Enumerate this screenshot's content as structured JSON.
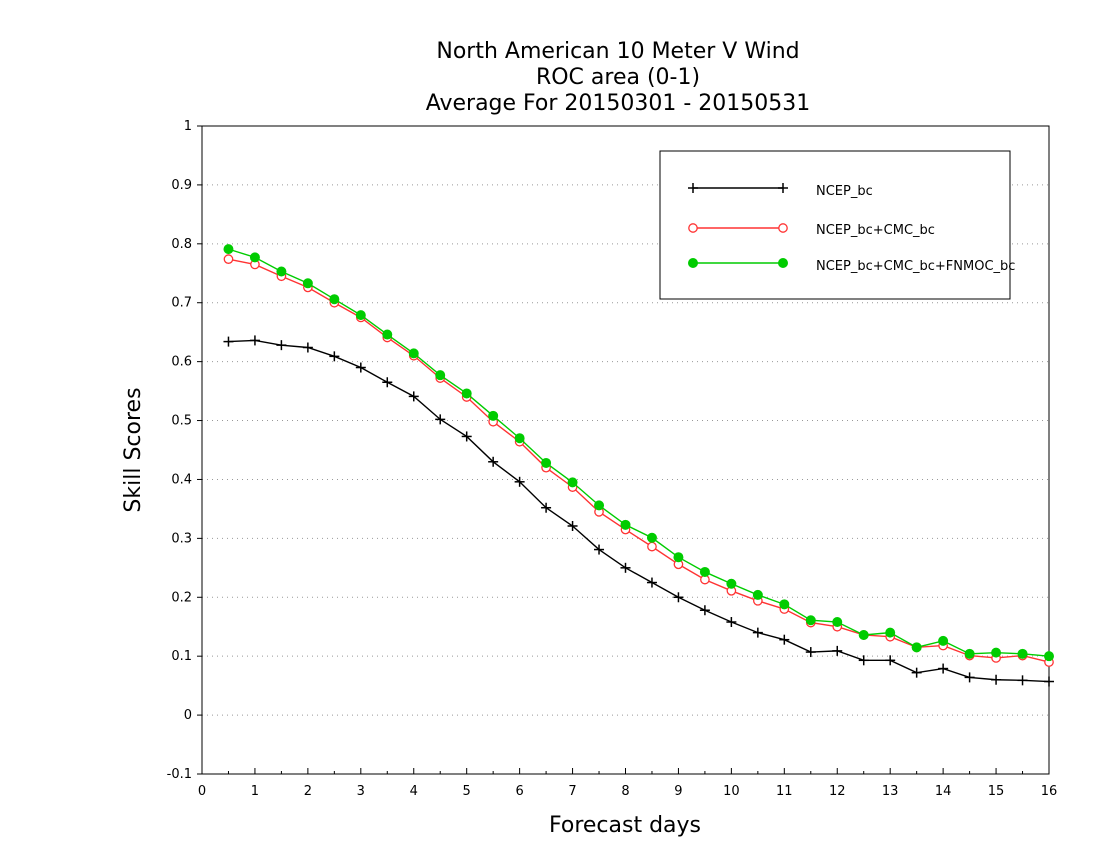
{
  "chart_data": {
    "type": "line",
    "title_lines": [
      "North American 10 Meter V Wind",
      "ROC area (0-1)",
      "Average For 20150301 - 20150531"
    ],
    "xlabel": "Forecast days",
    "ylabel": "Skill Scores",
    "xlim": [
      0,
      16
    ],
    "ylim": [
      -0.1,
      1
    ],
    "xticks": [
      "0",
      "1",
      "2",
      "3",
      "4",
      "5",
      "6",
      "7",
      "8",
      "9",
      "10",
      "11",
      "12",
      "13",
      "14",
      "15",
      "16"
    ],
    "yticks": [
      "-0.1",
      "0",
      "0.1",
      "0.2",
      "0.3",
      "0.4",
      "0.5",
      "0.6",
      "0.7",
      "0.8",
      "0.9",
      "1"
    ],
    "grid": true,
    "legend_position": "top-right",
    "x": [
      0.5,
      1,
      1.5,
      2,
      2.5,
      3,
      3.5,
      4,
      4.5,
      5,
      5.5,
      6,
      6.5,
      7,
      7.5,
      8,
      8.5,
      9,
      9.5,
      10,
      10.5,
      11,
      11.5,
      12,
      12.5,
      13,
      13.5,
      14,
      14.5,
      15,
      15.5,
      16
    ],
    "series": [
      {
        "name": "NCEP_bc",
        "color": "#000000",
        "marker": "plus",
        "values": [
          0.634,
          0.636,
          0.628,
          0.624,
          0.609,
          0.59,
          0.565,
          0.541,
          0.502,
          0.473,
          0.43,
          0.396,
          0.352,
          0.321,
          0.281,
          0.25,
          0.225,
          0.2,
          0.178,
          0.158,
          0.14,
          0.128,
          0.107,
          0.109,
          0.093,
          0.093,
          0.072,
          0.079,
          0.064,
          0.06,
          0.059,
          0.057
        ]
      },
      {
        "name": "NCEP_bc+CMC_bc",
        "color": "#ff3333",
        "marker": "open-circle",
        "values": [
          0.774,
          0.765,
          0.745,
          0.726,
          0.7,
          0.675,
          0.641,
          0.61,
          0.572,
          0.54,
          0.498,
          0.464,
          0.42,
          0.387,
          0.345,
          0.315,
          0.286,
          0.256,
          0.23,
          0.211,
          0.194,
          0.18,
          0.157,
          0.15,
          0.136,
          0.133,
          0.115,
          0.118,
          0.101,
          0.097,
          0.101,
          0.09
        ]
      },
      {
        "name": "NCEP_bc+CMC_bc+FNMOC_bc",
        "color": "#00cc00",
        "marker": "filled-circle",
        "values": [
          0.791,
          0.777,
          0.753,
          0.733,
          0.706,
          0.679,
          0.646,
          0.614,
          0.577,
          0.546,
          0.508,
          0.47,
          0.428,
          0.395,
          0.356,
          0.323,
          0.301,
          0.268,
          0.243,
          0.223,
          0.204,
          0.188,
          0.161,
          0.158,
          0.136,
          0.14,
          0.115,
          0.126,
          0.104,
          0.106,
          0.104,
          0.1
        ]
      }
    ]
  }
}
